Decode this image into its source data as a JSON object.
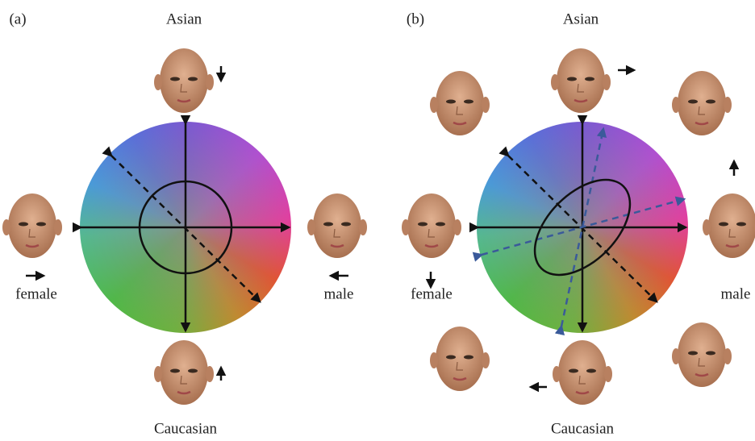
{
  "panels": [
    {
      "label": "(a)",
      "top": "Asian",
      "left": "female",
      "right": "male",
      "bottom": "Caucasian"
    },
    {
      "label": "(b)",
      "top": "Asian",
      "left": "female",
      "right": "male",
      "bottom": "Caucasian"
    }
  ]
}
